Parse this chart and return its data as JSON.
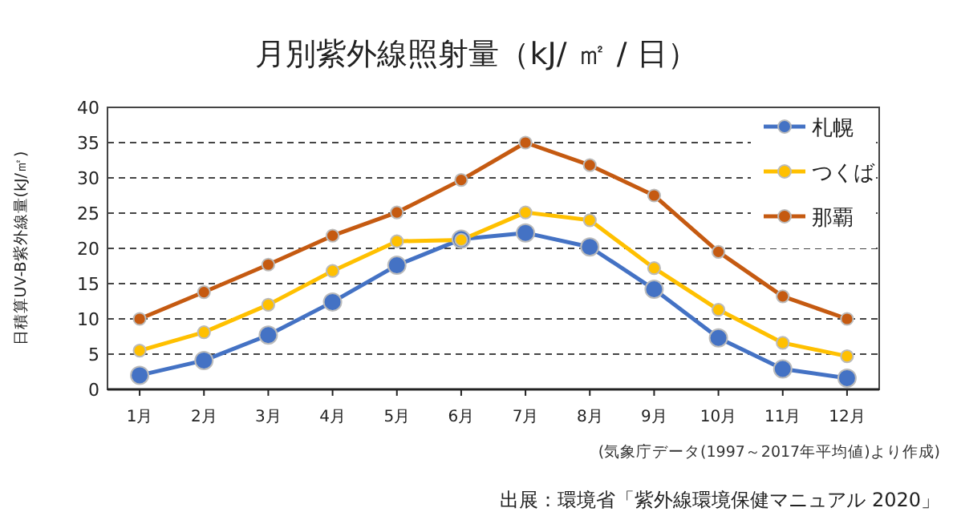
{
  "chart_data": {
    "type": "line",
    "title": "月別紫外線照射量（kJ/ ㎡ / 日）",
    "ylabel": "日積算UV-B紫外線量(kJ/㎡)",
    "categories": [
      "1月",
      "2月",
      "3月",
      "4月",
      "5月",
      "6月",
      "7月",
      "8月",
      "9月",
      "10月",
      "11月",
      "12月"
    ],
    "series": [
      {
        "name": "札幌",
        "color": "#4472c4",
        "values": [
          2.0,
          4.1,
          7.7,
          12.4,
          17.6,
          21.3,
          22.2,
          20.2,
          14.2,
          7.3,
          2.9,
          1.6
        ]
      },
      {
        "name": "つくば",
        "color": "#ffc000",
        "values": [
          5.5,
          8.1,
          12.0,
          16.8,
          21.0,
          21.2,
          25.1,
          24.0,
          17.2,
          11.3,
          6.6,
          4.7
        ]
      },
      {
        "name": "那覇",
        "color": "#c55a11",
        "values": [
          10.0,
          13.8,
          17.7,
          21.8,
          25.1,
          29.7,
          35.0,
          31.8,
          27.5,
          19.5,
          13.2,
          10.0
        ]
      }
    ],
    "ylim": [
      0,
      40
    ],
    "yticks": [
      0,
      5,
      10,
      15,
      20,
      25,
      30,
      35,
      40
    ],
    "grid": "y",
    "legend": "top right",
    "marker": "circle",
    "line_style": "solid",
    "annotations": [
      "(気象庁データ(1997～2017年平均値)より作成)",
      "出展：環境省「紫外線環境保健マニュアル 2020」"
    ]
  }
}
